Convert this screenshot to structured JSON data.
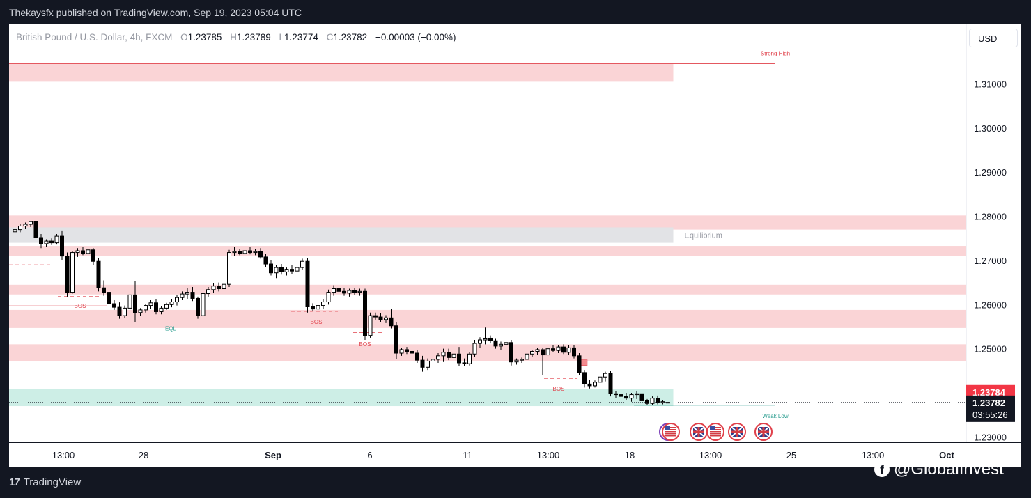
{
  "header": {
    "text": "Thekaysfx published on TradingView.com, Sep 19, 2023 05:04 UTC"
  },
  "legend": {
    "symbol": "British Pound / U.S. Dollar, 4h, FXCM",
    "o_label": "O",
    "o_value": "1.23785",
    "h_label": "H",
    "h_value": "1.23789",
    "l_label": "L",
    "l_value": "1.23774",
    "c_label": "C",
    "c_value": "1.23782",
    "change": "−0.00003 (−0.00%)"
  },
  "currency_button": {
    "label": "USD"
  },
  "footer": {
    "logo": "TradingView",
    "logo_icon": "tv-logo-icon"
  },
  "watermark": {
    "icon": "facebook-icon",
    "text": "@GlobalInvest"
  },
  "colors": {
    "supply_zone": "#fad4d6",
    "demand_zone": "#cdeee6",
    "equilibrium_zone": "#e2e3e6",
    "bos": "#e0404a",
    "weak_low": "#2a9d8f",
    "last_price": "#f23645"
  },
  "chart_data": {
    "type": "candlestick",
    "instrument": "British Pound / U.S. Dollar, 4h, FXCM",
    "y_axis": {
      "ticks": [
        1.23,
        1.24,
        1.25,
        1.26,
        1.27,
        1.28,
        1.29,
        1.3,
        1.31
      ],
      "tick_labels": [
        "1.23000",
        "1.24000",
        "1.25000",
        "1.26000",
        "1.27000",
        "1.28000",
        "1.29000",
        "1.30000",
        "1.31000"
      ],
      "range": [
        1.2288,
        1.3235
      ]
    },
    "x_axis": {
      "tick_labels": [
        "13:00",
        "28",
        "Sep",
        "6",
        "11",
        "13:00",
        "18",
        "13:00",
        "25",
        "13:00",
        "Oct"
      ]
    },
    "price_labels": {
      "bid": "1.23784",
      "last": "1.23782",
      "countdown": "03:55:26"
    },
    "zones": [
      {
        "kind": "supply",
        "from": 1.3105,
        "to": 1.3145,
        "label": ""
      },
      {
        "kind": "supply",
        "from": 1.277,
        "to": 1.2802,
        "label": ""
      },
      {
        "kind": "equilibrium",
        "from": 1.274,
        "to": 1.2775,
        "label": "Equilibrium"
      },
      {
        "kind": "supply",
        "from": 1.271,
        "to": 1.2733,
        "label": ""
      },
      {
        "kind": "supply",
        "from": 1.2623,
        "to": 1.2645,
        "label": ""
      },
      {
        "kind": "supply",
        "from": 1.2547,
        "to": 1.2588,
        "label": ""
      },
      {
        "kind": "supply",
        "from": 1.2472,
        "to": 1.251,
        "label": ""
      },
      {
        "kind": "demand",
        "from": 1.237,
        "to": 1.2408,
        "label": ""
      }
    ],
    "levels": [
      {
        "label": "Strong High",
        "price": 1.3146
      },
      {
        "label": "BOS",
        "price": 1.2597
      },
      {
        "label": "BOS",
        "price": 1.2585
      },
      {
        "label": "BOS",
        "price": 1.2537
      },
      {
        "label": "BOS",
        "price": 1.2433
      },
      {
        "label": "EQL",
        "price": 1.2565
      },
      {
        "label": "Weak Low",
        "price": 1.2372
      }
    ],
    "candles": [
      {
        "o": 1.2765,
        "h": 1.2774,
        "l": 1.2758,
        "c": 1.277
      },
      {
        "o": 1.277,
        "h": 1.2782,
        "l": 1.2764,
        "c": 1.2778
      },
      {
        "o": 1.2778,
        "h": 1.2786,
        "l": 1.2771,
        "c": 1.2782
      },
      {
        "o": 1.2782,
        "h": 1.279,
        "l": 1.2776,
        "c": 1.2788
      },
      {
        "o": 1.2788,
        "h": 1.2795,
        "l": 1.2748,
        "c": 1.2752
      },
      {
        "o": 1.2752,
        "h": 1.276,
        "l": 1.2728,
        "c": 1.2738
      },
      {
        "o": 1.2738,
        "h": 1.2748,
        "l": 1.273,
        "c": 1.2744
      },
      {
        "o": 1.2744,
        "h": 1.275,
        "l": 1.2735,
        "c": 1.274
      },
      {
        "o": 1.274,
        "h": 1.276,
        "l": 1.2736,
        "c": 1.2755
      },
      {
        "o": 1.2755,
        "h": 1.2768,
        "l": 1.27,
        "c": 1.271
      },
      {
        "o": 1.271,
        "h": 1.2718,
        "l": 1.2618,
        "c": 1.2628
      },
      {
        "o": 1.2628,
        "h": 1.2722,
        "l": 1.2625,
        "c": 1.2718
      },
      {
        "o": 1.2718,
        "h": 1.2728,
        "l": 1.2708,
        "c": 1.2722
      },
      {
        "o": 1.2722,
        "h": 1.273,
        "l": 1.2712,
        "c": 1.2716
      },
      {
        "o": 1.2716,
        "h": 1.273,
        "l": 1.271,
        "c": 1.2724
      },
      {
        "o": 1.2724,
        "h": 1.2728,
        "l": 1.269,
        "c": 1.2698
      },
      {
        "o": 1.2698,
        "h": 1.2705,
        "l": 1.263,
        "c": 1.2638
      },
      {
        "o": 1.2638,
        "h": 1.2655,
        "l": 1.262,
        "c": 1.2628
      },
      {
        "o": 1.2628,
        "h": 1.264,
        "l": 1.2596,
        "c": 1.2602
      },
      {
        "o": 1.2602,
        "h": 1.261,
        "l": 1.2588,
        "c": 1.2594
      },
      {
        "o": 1.2594,
        "h": 1.2605,
        "l": 1.2568,
        "c": 1.2575
      },
      {
        "o": 1.2575,
        "h": 1.2598,
        "l": 1.257,
        "c": 1.2592
      },
      {
        "o": 1.2592,
        "h": 1.2628,
        "l": 1.2582,
        "c": 1.2622
      },
      {
        "o": 1.2622,
        "h": 1.2654,
        "l": 1.256,
        "c": 1.2582
      },
      {
        "o": 1.2582,
        "h": 1.2592,
        "l": 1.2574,
        "c": 1.2588
      },
      {
        "o": 1.2588,
        "h": 1.2602,
        "l": 1.2582,
        "c": 1.2598
      },
      {
        "o": 1.2598,
        "h": 1.261,
        "l": 1.259,
        "c": 1.2604
      },
      {
        "o": 1.2604,
        "h": 1.2612,
        "l": 1.2578,
        "c": 1.2584
      },
      {
        "o": 1.2584,
        "h": 1.2596,
        "l": 1.2578,
        "c": 1.2592
      },
      {
        "o": 1.2592,
        "h": 1.2604,
        "l": 1.2588,
        "c": 1.26
      },
      {
        "o": 1.26,
        "h": 1.2612,
        "l": 1.2594,
        "c": 1.2606
      },
      {
        "o": 1.2606,
        "h": 1.2622,
        "l": 1.2598,
        "c": 1.2616
      },
      {
        "o": 1.2616,
        "h": 1.263,
        "l": 1.261,
        "c": 1.2624
      },
      {
        "o": 1.2624,
        "h": 1.2638,
        "l": 1.2612,
        "c": 1.2628
      },
      {
        "o": 1.2628,
        "h": 1.264,
        "l": 1.2608,
        "c": 1.2614
      },
      {
        "o": 1.2614,
        "h": 1.2618,
        "l": 1.2568,
        "c": 1.2575
      },
      {
        "o": 1.2575,
        "h": 1.263,
        "l": 1.257,
        "c": 1.2625
      },
      {
        "o": 1.2625,
        "h": 1.264,
        "l": 1.2618,
        "c": 1.2634
      },
      {
        "o": 1.2634,
        "h": 1.2648,
        "l": 1.2626,
        "c": 1.2642
      },
      {
        "o": 1.2642,
        "h": 1.265,
        "l": 1.263,
        "c": 1.2636
      },
      {
        "o": 1.2636,
        "h": 1.2652,
        "l": 1.263,
        "c": 1.2646
      },
      {
        "o": 1.2646,
        "h": 1.2724,
        "l": 1.264,
        "c": 1.2718
      },
      {
        "o": 1.2718,
        "h": 1.273,
        "l": 1.271,
        "c": 1.272
      },
      {
        "o": 1.272,
        "h": 1.2726,
        "l": 1.2712,
        "c": 1.2716
      },
      {
        "o": 1.2716,
        "h": 1.2726,
        "l": 1.271,
        "c": 1.2722
      },
      {
        "o": 1.2722,
        "h": 1.273,
        "l": 1.2714,
        "c": 1.2718
      },
      {
        "o": 1.2718,
        "h": 1.2726,
        "l": 1.2712,
        "c": 1.272
      },
      {
        "o": 1.272,
        "h": 1.2728,
        "l": 1.2704,
        "c": 1.2708
      },
      {
        "o": 1.2708,
        "h": 1.2715,
        "l": 1.2685,
        "c": 1.2692
      },
      {
        "o": 1.2692,
        "h": 1.27,
        "l": 1.2666,
        "c": 1.2672
      },
      {
        "o": 1.2672,
        "h": 1.269,
        "l": 1.266,
        "c": 1.2684
      },
      {
        "o": 1.2684,
        "h": 1.2692,
        "l": 1.2668,
        "c": 1.2674
      },
      {
        "o": 1.2674,
        "h": 1.2684,
        "l": 1.2666,
        "c": 1.268
      },
      {
        "o": 1.268,
        "h": 1.269,
        "l": 1.267,
        "c": 1.2676
      },
      {
        "o": 1.2676,
        "h": 1.2692,
        "l": 1.2668,
        "c": 1.2684
      },
      {
        "o": 1.2684,
        "h": 1.2704,
        "l": 1.2678,
        "c": 1.2698
      },
      {
        "o": 1.2698,
        "h": 1.2706,
        "l": 1.2582,
        "c": 1.2595
      },
      {
        "o": 1.2595,
        "h": 1.2603,
        "l": 1.2586,
        "c": 1.259
      },
      {
        "o": 1.259,
        "h": 1.2604,
        "l": 1.2584,
        "c": 1.2598
      },
      {
        "o": 1.2598,
        "h": 1.2612,
        "l": 1.259,
        "c": 1.2606
      },
      {
        "o": 1.2606,
        "h": 1.2634,
        "l": 1.26,
        "c": 1.2628
      },
      {
        "o": 1.2628,
        "h": 1.2644,
        "l": 1.262,
        "c": 1.2636
      },
      {
        "o": 1.2636,
        "h": 1.2642,
        "l": 1.2624,
        "c": 1.263
      },
      {
        "o": 1.263,
        "h": 1.2638,
        "l": 1.262,
        "c": 1.2626
      },
      {
        "o": 1.2626,
        "h": 1.2636,
        "l": 1.2618,
        "c": 1.2632
      },
      {
        "o": 1.2632,
        "h": 1.2638,
        "l": 1.2622,
        "c": 1.2628
      },
      {
        "o": 1.2628,
        "h": 1.2636,
        "l": 1.262,
        "c": 1.263
      },
      {
        "o": 1.263,
        "h": 1.2636,
        "l": 1.252,
        "c": 1.253
      },
      {
        "o": 1.253,
        "h": 1.2582,
        "l": 1.2525,
        "c": 1.2575
      },
      {
        "o": 1.2575,
        "h": 1.2582,
        "l": 1.2566,
        "c": 1.2572
      },
      {
        "o": 1.2572,
        "h": 1.258,
        "l": 1.256,
        "c": 1.2566
      },
      {
        "o": 1.2566,
        "h": 1.2576,
        "l": 1.2558,
        "c": 1.257
      },
      {
        "o": 1.257,
        "h": 1.259,
        "l": 1.2546,
        "c": 1.2552
      },
      {
        "o": 1.2552,
        "h": 1.256,
        "l": 1.2476,
        "c": 1.249
      },
      {
        "o": 1.249,
        "h": 1.2502,
        "l": 1.2484,
        "c": 1.2498
      },
      {
        "o": 1.2498,
        "h": 1.2504,
        "l": 1.2488,
        "c": 1.2494
      },
      {
        "o": 1.2494,
        "h": 1.25,
        "l": 1.2484,
        "c": 1.249
      },
      {
        "o": 1.249,
        "h": 1.2498,
        "l": 1.2468,
        "c": 1.2474
      },
      {
        "o": 1.2474,
        "h": 1.2484,
        "l": 1.2448,
        "c": 1.2458
      },
      {
        "o": 1.2458,
        "h": 1.2478,
        "l": 1.2452,
        "c": 1.2472
      },
      {
        "o": 1.2472,
        "h": 1.248,
        "l": 1.2464,
        "c": 1.2476
      },
      {
        "o": 1.2476,
        "h": 1.249,
        "l": 1.2468,
        "c": 1.2484
      },
      {
        "o": 1.2484,
        "h": 1.25,
        "l": 1.247,
        "c": 1.2492
      },
      {
        "o": 1.2492,
        "h": 1.25,
        "l": 1.2474,
        "c": 1.248
      },
      {
        "o": 1.248,
        "h": 1.2494,
        "l": 1.2472,
        "c": 1.2488
      },
      {
        "o": 1.2488,
        "h": 1.2504,
        "l": 1.246,
        "c": 1.2468
      },
      {
        "o": 1.2468,
        "h": 1.2478,
        "l": 1.246,
        "c": 1.2466
      },
      {
        "o": 1.2466,
        "h": 1.2492,
        "l": 1.2462,
        "c": 1.2488
      },
      {
        "o": 1.2488,
        "h": 1.252,
        "l": 1.2482,
        "c": 1.2512
      },
      {
        "o": 1.2512,
        "h": 1.2526,
        "l": 1.2502,
        "c": 1.252
      },
      {
        "o": 1.252,
        "h": 1.2548,
        "l": 1.251,
        "c": 1.2524
      },
      {
        "o": 1.2524,
        "h": 1.253,
        "l": 1.2512,
        "c": 1.2518
      },
      {
        "o": 1.2518,
        "h": 1.2524,
        "l": 1.25,
        "c": 1.2506
      },
      {
        "o": 1.2506,
        "h": 1.2516,
        "l": 1.2498,
        "c": 1.251
      },
      {
        "o": 1.251,
        "h": 1.2518,
        "l": 1.2502,
        "c": 1.2514
      },
      {
        "o": 1.2514,
        "h": 1.252,
        "l": 1.2462,
        "c": 1.247
      },
      {
        "o": 1.247,
        "h": 1.2478,
        "l": 1.2464,
        "c": 1.2474
      },
      {
        "o": 1.2474,
        "h": 1.248,
        "l": 1.2468,
        "c": 1.2476
      },
      {
        "o": 1.2476,
        "h": 1.2492,
        "l": 1.2472,
        "c": 1.2488
      },
      {
        "o": 1.2488,
        "h": 1.2498,
        "l": 1.2482,
        "c": 1.2494
      },
      {
        "o": 1.2494,
        "h": 1.2502,
        "l": 1.2486,
        "c": 1.2498
      },
      {
        "o": 1.2498,
        "h": 1.2502,
        "l": 1.244,
        "c": 1.2486
      },
      {
        "o": 1.2486,
        "h": 1.2504,
        "l": 1.248,
        "c": 1.25
      },
      {
        "o": 1.25,
        "h": 1.2508,
        "l": 1.2492,
        "c": 1.2496
      },
      {
        "o": 1.2496,
        "h": 1.2508,
        "l": 1.249,
        "c": 1.2504
      },
      {
        "o": 1.2504,
        "h": 1.251,
        "l": 1.2488,
        "c": 1.2492
      },
      {
        "o": 1.2492,
        "h": 1.2508,
        "l": 1.2486,
        "c": 1.2502
      },
      {
        "o": 1.2502,
        "h": 1.2508,
        "l": 1.2478,
        "c": 1.2484
      },
      {
        "o": 1.2484,
        "h": 1.249,
        "l": 1.244,
        "c": 1.2446
      },
      {
        "o": 1.2446,
        "h": 1.2452,
        "l": 1.2412,
        "c": 1.242
      },
      {
        "o": 1.242,
        "h": 1.243,
        "l": 1.241,
        "c": 1.2416
      },
      {
        "o": 1.2416,
        "h": 1.2428,
        "l": 1.2412,
        "c": 1.2424
      },
      {
        "o": 1.2424,
        "h": 1.244,
        "l": 1.2418,
        "c": 1.2436
      },
      {
        "o": 1.2436,
        "h": 1.2448,
        "l": 1.2426,
        "c": 1.2444
      },
      {
        "o": 1.2444,
        "h": 1.245,
        "l": 1.2392,
        "c": 1.2398
      },
      {
        "o": 1.2398,
        "h": 1.2404,
        "l": 1.2388,
        "c": 1.2396
      },
      {
        "o": 1.2396,
        "h": 1.2404,
        "l": 1.2386,
        "c": 1.2392
      },
      {
        "o": 1.2392,
        "h": 1.24,
        "l": 1.2384,
        "c": 1.2388
      },
      {
        "o": 1.2388,
        "h": 1.24,
        "l": 1.238,
        "c": 1.2396
      },
      {
        "o": 1.2396,
        "h": 1.2404,
        "l": 1.2386,
        "c": 1.2398
      },
      {
        "o": 1.2398,
        "h": 1.2404,
        "l": 1.2376,
        "c": 1.2382
      },
      {
        "o": 1.2382,
        "h": 1.2386,
        "l": 1.2372,
        "c": 1.2376
      },
      {
        "o": 1.2376,
        "h": 1.2392,
        "l": 1.2372,
        "c": 1.2388
      },
      {
        "o": 1.2388,
        "h": 1.2394,
        "l": 1.2374,
        "c": 1.2378
      },
      {
        "o": 1.2378,
        "h": 1.2384,
        "l": 1.2374,
        "c": 1.238
      },
      {
        "o": 1.23785,
        "h": 1.23789,
        "l": 1.23774,
        "c": 1.23782
      }
    ],
    "events": [
      "uk-us",
      "us",
      "uk",
      "us",
      "uk",
      "uk"
    ]
  }
}
